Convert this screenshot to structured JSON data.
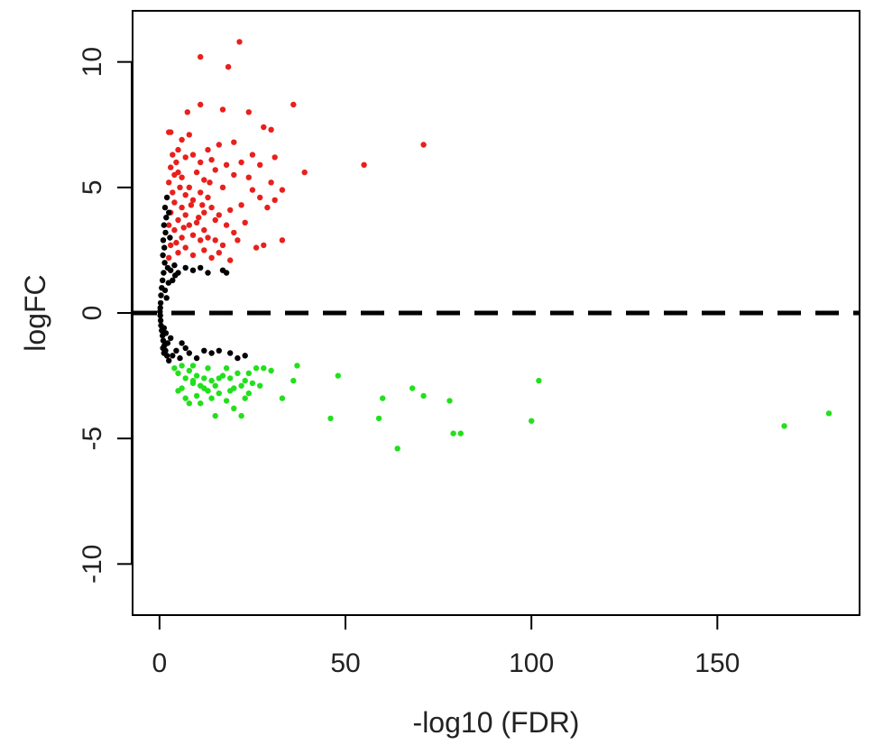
{
  "chart_data": {
    "type": "scatter",
    "title": "",
    "xlabel": "-log10 (FDR)",
    "ylabel": "logFC",
    "xlim": [
      -7,
      188
    ],
    "ylim": [
      -12,
      12
    ],
    "x_ticks": [
      0,
      50,
      100,
      150
    ],
    "y_ticks": [
      -10,
      -5,
      0,
      5,
      10
    ],
    "x_tick_labels": [
      "0",
      "50",
      "100",
      "150"
    ],
    "y_tick_labels": [
      "-10",
      "-5",
      "0",
      "5",
      "10"
    ],
    "grid": false,
    "legend": "none",
    "reference_line": {
      "y": 0,
      "style": "dashed",
      "color": "#000000"
    },
    "colors": {
      "up": "#e8201c",
      "down": "#22e01c",
      "not_significant": "#000000"
    },
    "series": [
      {
        "color": "#e8201c",
        "points": [
          [
            21.5,
            10.8
          ],
          [
            11,
            10.2
          ],
          [
            18.5,
            9.8
          ],
          [
            36,
            8.3
          ],
          [
            11,
            8.3
          ],
          [
            24,
            8.0
          ],
          [
            7.5,
            8.0
          ],
          [
            17,
            8.1
          ],
          [
            28,
            7.4
          ],
          [
            30,
            7.3
          ],
          [
            71,
            6.7
          ],
          [
            2.5,
            7.2
          ],
          [
            3,
            7.2
          ],
          [
            5,
            6.5
          ],
          [
            6,
            6.9
          ],
          [
            8,
            7.1
          ],
          [
            13,
            6.5
          ],
          [
            16,
            6.7
          ],
          [
            20,
            6.8
          ],
          [
            25,
            6.3
          ],
          [
            31,
            6.2
          ],
          [
            3.5,
            6.3
          ],
          [
            4.5,
            6.0
          ],
          [
            7,
            6.2
          ],
          [
            9,
            6.3
          ],
          [
            11,
            6.0
          ],
          [
            14,
            6.1
          ],
          [
            18,
            5.9
          ],
          [
            22,
            6.0
          ],
          [
            27,
            5.9
          ],
          [
            55,
            5.9
          ],
          [
            39,
            5.6
          ],
          [
            3,
            5.8
          ],
          [
            4,
            5.5
          ],
          [
            5,
            5.6
          ],
          [
            6,
            5.4
          ],
          [
            10,
            5.6
          ],
          [
            12,
            5.3
          ],
          [
            15,
            5.7
          ],
          [
            20,
            5.5
          ],
          [
            24,
            5.4
          ],
          [
            30,
            5.2
          ],
          [
            2.5,
            5.2
          ],
          [
            3.5,
            4.8
          ],
          [
            5.5,
            5.0
          ],
          [
            7,
            4.7
          ],
          [
            8,
            5.0
          ],
          [
            11,
            4.8
          ],
          [
            13,
            4.6
          ],
          [
            17,
            5.0
          ],
          [
            25,
            4.9
          ],
          [
            33,
            4.9
          ],
          [
            27,
            4.6
          ],
          [
            29,
            4.2
          ],
          [
            31,
            4.5
          ],
          [
            4,
            4.4
          ],
          [
            6,
            4.2
          ],
          [
            9,
            4.5
          ],
          [
            12,
            4.0
          ],
          [
            14,
            4.2
          ],
          [
            16,
            3.9
          ],
          [
            19,
            4.1
          ],
          [
            22,
            4.3
          ],
          [
            3,
            4.0
          ],
          [
            5,
            3.7
          ],
          [
            7,
            3.9
          ],
          [
            8,
            3.5
          ],
          [
            10,
            3.6
          ],
          [
            12,
            3.3
          ],
          [
            15,
            3.7
          ],
          [
            18,
            3.5
          ],
          [
            20,
            3.2
          ],
          [
            2.5,
            3.5
          ],
          [
            4,
            3.3
          ],
          [
            6,
            3.0
          ],
          [
            9,
            3.1
          ],
          [
            11,
            2.9
          ],
          [
            13,
            3.0
          ],
          [
            17,
            2.7
          ],
          [
            21,
            2.9
          ],
          [
            26,
            2.6
          ],
          [
            28,
            2.7
          ],
          [
            33,
            2.9
          ],
          [
            3,
            2.7
          ],
          [
            5,
            2.4
          ],
          [
            7,
            2.6
          ],
          [
            9,
            2.3
          ],
          [
            12,
            2.5
          ],
          [
            14,
            2.2
          ],
          [
            16,
            2.4
          ],
          [
            19,
            2.1
          ],
          [
            2.5,
            2.2
          ],
          [
            4.5,
            2.8
          ],
          [
            6.5,
            3.4
          ],
          [
            8.5,
            4.3
          ],
          [
            10.5,
            3.8
          ],
          [
            23,
            3.6
          ],
          [
            15,
            2.9
          ],
          [
            11.5,
            4.3
          ],
          [
            13.5,
            5.2
          ]
        ]
      },
      {
        "color": "#000000",
        "points": [
          [
            2,
            4.6
          ],
          [
            1.5,
            4.2
          ],
          [
            1.8,
            3.8
          ],
          [
            1.2,
            3.5
          ],
          [
            1.6,
            3.2
          ],
          [
            1,
            2.9
          ],
          [
            1.3,
            2.6
          ],
          [
            0.9,
            2.3
          ],
          [
            1.4,
            2.0
          ],
          [
            2.2,
            1.8
          ],
          [
            3,
            1.7
          ],
          [
            4,
            1.9
          ],
          [
            5,
            1.6
          ],
          [
            7,
            1.8
          ],
          [
            9,
            1.7
          ],
          [
            11,
            1.8
          ],
          [
            13,
            1.6
          ],
          [
            18,
            1.6
          ],
          [
            2.5,
            4.0
          ],
          [
            2.8,
            3.0
          ],
          [
            1.1,
            1.6
          ],
          [
            0.8,
            1.3
          ],
          [
            0.6,
            1.0
          ],
          [
            0.4,
            0.7
          ],
          [
            0.3,
            0.4
          ],
          [
            0.2,
            0.2
          ],
          [
            0.1,
            0.05
          ],
          [
            0.2,
            -0.1
          ],
          [
            0.3,
            -0.3
          ],
          [
            0.4,
            -0.5
          ],
          [
            0.6,
            -0.7
          ],
          [
            0.8,
            -0.9
          ],
          [
            1.0,
            -1.1
          ],
          [
            1.3,
            -1.3
          ],
          [
            1.6,
            -1.5
          ],
          [
            2,
            -1.7
          ],
          [
            2.5,
            -1.9
          ],
          [
            3.5,
            -1.7
          ],
          [
            4.5,
            -1.5
          ],
          [
            5.5,
            -1.8
          ],
          [
            7,
            -1.4
          ],
          [
            8,
            -1.6
          ],
          [
            10,
            -1.8
          ],
          [
            12,
            -1.5
          ],
          [
            14,
            -1.6
          ],
          [
            16,
            -1.5
          ],
          [
            19,
            -1.6
          ],
          [
            21,
            -1.8
          ],
          [
            23,
            -1.7
          ],
          [
            2.2,
            -1.2
          ],
          [
            1.7,
            -0.8
          ],
          [
            1.2,
            -0.6
          ],
          [
            1.5,
            0.9
          ],
          [
            1.9,
            0.6
          ],
          [
            2.4,
            1.2
          ],
          [
            3.5,
            1.3
          ],
          [
            4.2,
            1.5
          ],
          [
            1.2,
            -1.6
          ],
          [
            0.9,
            -1.4
          ],
          [
            6,
            -1.2
          ],
          [
            3,
            -1.0
          ],
          [
            17,
            1.7
          ]
        ]
      },
      {
        "color": "#22e01c",
        "points": [
          [
            4,
            -2.2
          ],
          [
            5,
            -2.4
          ],
          [
            6,
            -2.1
          ],
          [
            7,
            -2.6
          ],
          [
            8,
            -2.3
          ],
          [
            9,
            -2.8
          ],
          [
            10,
            -2.5
          ],
          [
            11,
            -2.9
          ],
          [
            12,
            -2.6
          ],
          [
            13,
            -3.1
          ],
          [
            14,
            -2.7
          ],
          [
            15,
            -2.9
          ],
          [
            16,
            -3.2
          ],
          [
            17,
            -2.5
          ],
          [
            18,
            -2.2
          ],
          [
            19,
            -2.6
          ],
          [
            20,
            -3.0
          ],
          [
            21,
            -2.4
          ],
          [
            22,
            -2.9
          ],
          [
            23,
            -2.7
          ],
          [
            24,
            -3.2
          ],
          [
            25,
            -2.8
          ],
          [
            26,
            -2.2
          ],
          [
            27,
            -2.9
          ],
          [
            28,
            -2.2
          ],
          [
            6,
            -3.0
          ],
          [
            7,
            -3.4
          ],
          [
            8,
            -3.6
          ],
          [
            9,
            -2.7
          ],
          [
            10,
            -3.3
          ],
          [
            11,
            -3.6
          ],
          [
            12,
            -3.0
          ],
          [
            14,
            -3.4
          ],
          [
            15,
            -4.1
          ],
          [
            18,
            -3.5
          ],
          [
            20,
            -3.8
          ],
          [
            22,
            -4.1
          ],
          [
            23,
            -3.4
          ],
          [
            33,
            -3.4
          ],
          [
            36,
            -2.7
          ],
          [
            37,
            -2.1
          ],
          [
            46,
            -4.2
          ],
          [
            48,
            -2.5
          ],
          [
            59,
            -4.2
          ],
          [
            60,
            -3.4
          ],
          [
            64,
            -5.4
          ],
          [
            68,
            -3.0
          ],
          [
            71,
            -3.3
          ],
          [
            78,
            -3.5
          ],
          [
            79,
            -4.8
          ],
          [
            81,
            -4.8
          ],
          [
            100,
            -4.3
          ],
          [
            102,
            -2.7
          ],
          [
            168,
            -4.5
          ],
          [
            180,
            -4.0
          ],
          [
            13,
            -2.2
          ],
          [
            9,
            -2.1
          ],
          [
            16,
            -2.6
          ],
          [
            19,
            -3.1
          ],
          [
            24,
            -2.4
          ],
          [
            5,
            -3.1
          ],
          [
            30,
            -2.3
          ]
        ]
      }
    ]
  }
}
